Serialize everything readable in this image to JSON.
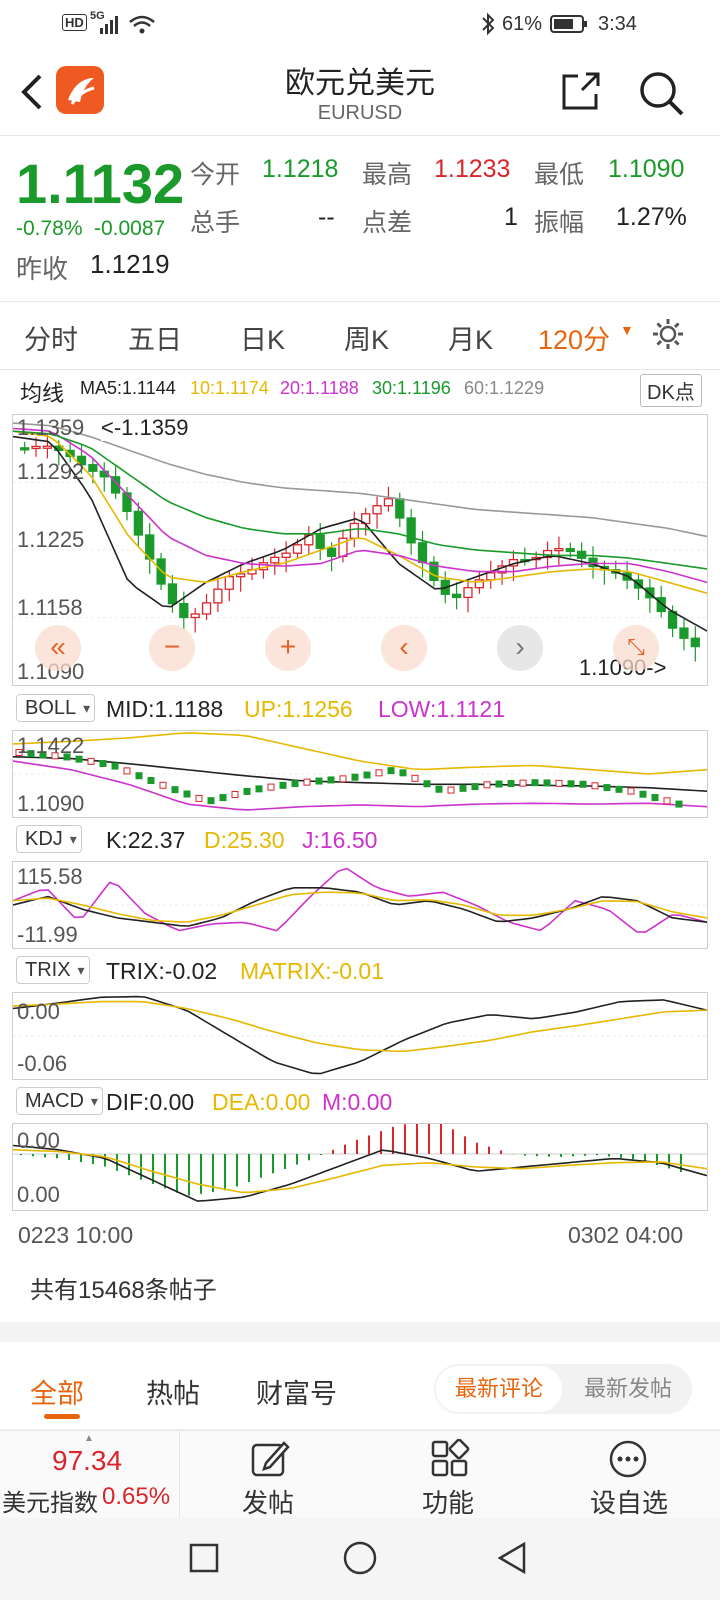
{
  "status": {
    "left_icons": "HD 5G",
    "battery_pct": "61%",
    "time": "3:34"
  },
  "header": {
    "title": "欧元兑美元",
    "symbol": "EURUSD"
  },
  "quote": {
    "price": "1.1132",
    "change_pct": "-0.78%",
    "change_abs": "-0.0087",
    "prev_close_label": "昨收",
    "prev_close": "1.1219",
    "open_label": "今开",
    "open": "1.1218",
    "high_label": "最高",
    "high": "1.1233",
    "low_label": "最低",
    "low": "1.1090",
    "volume_label": "总手",
    "volume": "--",
    "spread_label": "点差",
    "spread": "1",
    "amplitude_label": "振幅",
    "amplitude": "1.27%"
  },
  "tabs": [
    "分时",
    "五日",
    "日K",
    "周K",
    "月K",
    "120分"
  ],
  "ma": {
    "label": "均线",
    "ma5": "MA5:1.1144",
    "ma10": "10:1.1174",
    "ma20": "20:1.1188",
    "ma30": "30:1.1196",
    "ma60": "60:1.1229",
    "dk_button": "DK点"
  },
  "main_chart": {
    "y_labels": [
      "1.1359",
      "1.1292",
      "1.1225",
      "1.1158",
      "1.1090"
    ],
    "high_note": "<-1.1359",
    "low_note": "1.1090->"
  },
  "boll": {
    "label": "BOLL",
    "mid": "MID:1.1188",
    "up": "UP:1.1256",
    "low": "LOW:1.1121",
    "y_top": "1.1422",
    "y_bottom": "1.1090"
  },
  "kdj": {
    "label": "KDJ",
    "k": "K:22.37",
    "d": "D:25.30",
    "j": "J:16.50",
    "y_top": "115.58",
    "y_bottom": "-11.99"
  },
  "trix": {
    "label": "TRIX",
    "trix": "TRIX:-0.02",
    "matrix": "MATRIX:-0.01",
    "y_top": "0.00",
    "y_bottom": "-0.06"
  },
  "macd": {
    "label": "MACD",
    "dif": "DIF:0.00",
    "dea": "DEA:0.00",
    "m": "M:0.00",
    "y_top": "0.00",
    "y_bottom": "0.00"
  },
  "time_axis": {
    "start": "0223 10:00",
    "end": "0302 04:00"
  },
  "posts": {
    "count_text": "共有15468条帖子"
  },
  "sub_tabs": {
    "all": "全部",
    "hot": "热帖",
    "wealth": "财富号",
    "latest_comment": "最新评论",
    "latest_post": "最新发帖"
  },
  "bottom": {
    "dxy_value": "97.34",
    "dxy_label": "美元指数",
    "dxy_change": "0.65%",
    "post": "发帖",
    "func": "功能",
    "watch": "设自选"
  },
  "colors": {
    "up": "#d9252b",
    "down": "#1a9a2a",
    "accent": "#e8650f",
    "ma5": "#222222",
    "ma10": "#e6b800",
    "ma20": "#cc33cc",
    "ma30": "#1a9a2a",
    "ma60": "#999999"
  }
}
